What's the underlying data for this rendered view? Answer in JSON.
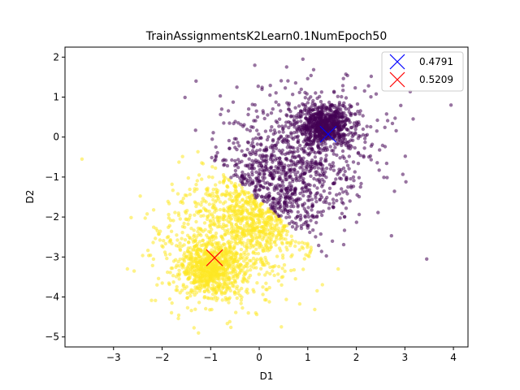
{
  "chart_data": {
    "type": "scatter",
    "title": "TrainAssignmentsK2Learn0.1NumEpoch50",
    "xlabel": "D1",
    "ylabel": "D2",
    "xlim": [
      -4.0,
      4.3
    ],
    "ylim": [
      -5.25,
      2.25
    ],
    "xticks": [
      -3,
      -2,
      -1,
      0,
      1,
      2,
      3,
      4
    ],
    "yticks": [
      -5,
      -4,
      -3,
      -2,
      -1,
      0,
      1,
      2
    ],
    "grid": false,
    "legend_placement": "top-right",
    "colors": {
      "cluster_purple": "#440154",
      "cluster_yellow": "#fde725",
      "centroid_blue": "#0000ff",
      "centroid_red": "#ff0000"
    },
    "series": [
      {
        "color": "#440154",
        "dense_center": [
          1.35,
          0.3
        ],
        "spread_region": "upper-right of line y = -x - 1.6",
        "approx_points": 1200
      },
      {
        "color": "#fde725",
        "dense_center": [
          -1.0,
          -3.3
        ],
        "spread_region": "lower-left of line y = -x - 1.6",
        "approx_points": 1300
      }
    ],
    "centroids": [
      {
        "name": "0.4791",
        "x": 1.42,
        "y": 0.07,
        "color": "#0000ff",
        "marker": "x"
      },
      {
        "name": "0.5209",
        "x": -0.92,
        "y": -3.02,
        "color": "#ff0000",
        "marker": "x"
      }
    ],
    "outliers": [
      {
        "x": -3.65,
        "y": -0.55,
        "color": "#fde725"
      },
      {
        "x": 0.9,
        "y": 1.95,
        "color": "#440154"
      },
      {
        "x": 3.95,
        "y": 0.8,
        "color": "#440154"
      },
      {
        "x": 3.45,
        "y": -3.05,
        "color": "#440154"
      },
      {
        "x": -1.25,
        "y": -4.9,
        "color": "#fde725"
      },
      {
        "x": -1.3,
        "y": 1.4,
        "color": "#440154"
      }
    ]
  }
}
